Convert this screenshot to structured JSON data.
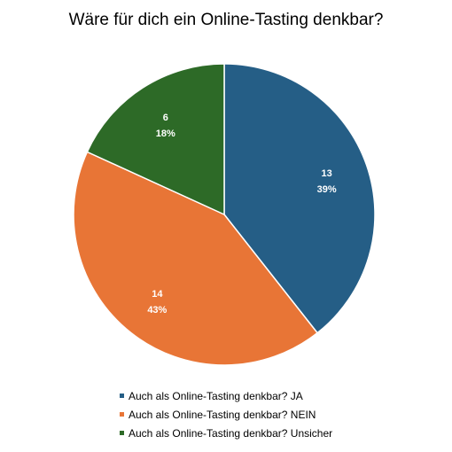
{
  "chart_data": {
    "type": "pie",
    "title": "Wäre für dich ein Online-Tasting denkbar?",
    "legend_position": "bottom",
    "slices": [
      {
        "label": "Auch als Online-Tasting denkbar? JA",
        "value": 13,
        "percent_label": "39%",
        "color": "#255e86"
      },
      {
        "label": "Auch als Online-Tasting denkbar? NEIN",
        "value": 14,
        "percent_label": "43%",
        "color": "#e87536"
      },
      {
        "label": "Auch als Online-Tasting denkbar? Unsicher",
        "value": 6,
        "percent_label": "18%",
        "color": "#2d6a27"
      }
    ]
  }
}
